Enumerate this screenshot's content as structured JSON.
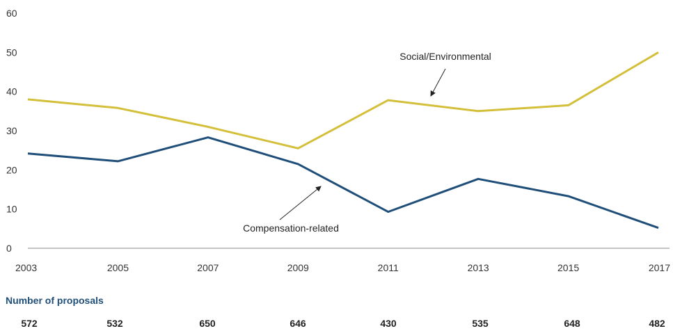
{
  "chart_data": {
    "type": "line",
    "x": [
      2003,
      2005,
      2007,
      2009,
      2011,
      2013,
      2015,
      2017
    ],
    "ylim": [
      0,
      60
    ],
    "yticks": [
      0,
      10,
      20,
      30,
      40,
      50,
      60
    ],
    "grid": false,
    "series": [
      {
        "name": "Social/Environmental",
        "color": "#d4bf3a",
        "values": [
          38,
          35.8,
          31,
          25.5,
          37.8,
          35,
          36.5,
          50
        ]
      },
      {
        "name": "Compensation-related",
        "color": "#1f4e79",
        "values": [
          24.2,
          22.2,
          28.3,
          21.5,
          9.3,
          17.7,
          13.3,
          5.2
        ]
      }
    ]
  },
  "proposals": {
    "title": "Number of proposals",
    "title_color": "#1f4e79",
    "counts": [
      "572",
      "532",
      "650",
      "646",
      "430",
      "535",
      "648",
      "482"
    ]
  }
}
